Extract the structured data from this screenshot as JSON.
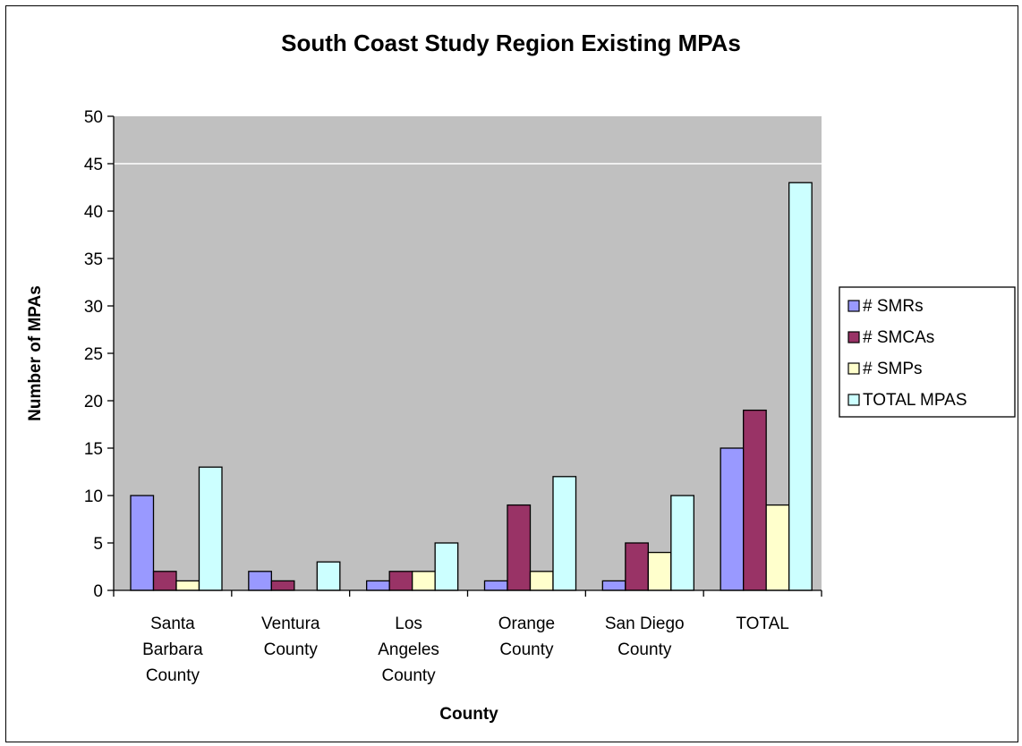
{
  "chart_data": {
    "type": "bar",
    "title": "South Coast Study Region Existing MPAs",
    "xlabel": "County",
    "ylabel": "Number of MPAs",
    "categories": [
      [
        "Santa",
        "Barbara",
        "County"
      ],
      [
        "Ventura",
        "County"
      ],
      [
        "Los",
        "Angeles",
        "County"
      ],
      [
        "Orange",
        "County"
      ],
      [
        "San Diego",
        "County"
      ],
      [
        "TOTAL"
      ]
    ],
    "series": [
      {
        "name": "# SMRs",
        "color": "#9999ff",
        "values": [
          10,
          2,
          1,
          1,
          1,
          15
        ]
      },
      {
        "name": "# SMCAs",
        "color": "#993366",
        "values": [
          2,
          1,
          2,
          9,
          5,
          19
        ]
      },
      {
        "name": "# SMPs",
        "color": "#ffffcc",
        "values": [
          1,
          0,
          2,
          2,
          4,
          9
        ]
      },
      {
        "name": "TOTAL MPAS",
        "color": "#ccffff",
        "values": [
          13,
          3,
          5,
          12,
          10,
          43
        ]
      }
    ],
    "ylim": [
      0,
      50
    ],
    "yticks": [
      0,
      5,
      10,
      15,
      20,
      25,
      30,
      35,
      40,
      45,
      50
    ],
    "gridlines": [
      45
    ],
    "plot_background": "#c0c0c0",
    "legend_position": "right"
  }
}
